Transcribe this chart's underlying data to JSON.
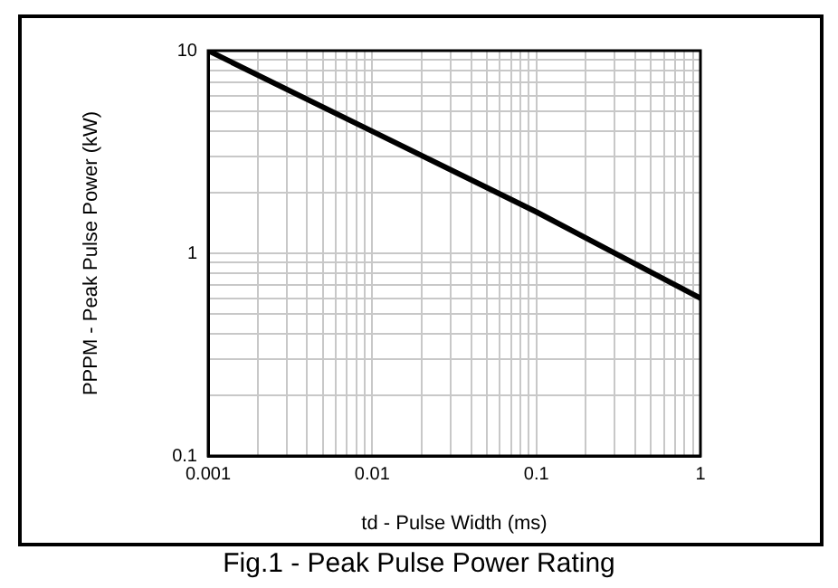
{
  "chart_data": {
    "type": "line",
    "title": "Fig.1 - Peak Pulse Power Rating",
    "xlabel": "td - Pulse Width (ms)",
    "ylabel": "PPPM - Peak Pulse Power (kW)",
    "x": [
      0.001,
      0.01,
      0.1,
      1
    ],
    "series": [
      {
        "color": "#000000",
        "values": [
          10,
          4,
          1.6,
          0.6
        ]
      }
    ],
    "log": "xy",
    "xlim": [
      0.001,
      1
    ],
    "ylim": [
      0.1,
      10
    ],
    "xticks": [
      0.001,
      {
        "value": 0.002,
        "label": null
      },
      {
        "value": 0.003,
        "label": null
      },
      {
        "value": 0.004,
        "label": null
      },
      {
        "value": 0.005,
        "label": null
      },
      {
        "value": 0.006,
        "label": null
      },
      {
        "value": 0.007,
        "label": null
      },
      {
        "value": 0.008,
        "label": null
      },
      {
        "value": 0.009,
        "label": null
      },
      0.01,
      {
        "value": 0.02,
        "label": null
      },
      {
        "value": 0.03,
        "label": null
      },
      {
        "value": 0.04,
        "label": null
      },
      {
        "value": 0.05,
        "label": null
      },
      {
        "value": 0.06,
        "label": null
      },
      {
        "value": 0.07,
        "label": null
      },
      {
        "value": 0.08,
        "label": null
      },
      {
        "value": 0.09,
        "label": null
      },
      0.1,
      {
        "value": 0.2,
        "label": null
      },
      {
        "value": 0.3,
        "label": null
      },
      {
        "value": 0.4,
        "label": null
      },
      {
        "value": 0.5,
        "label": null
      },
      {
        "value": 0.6,
        "label": null
      },
      {
        "value": 0.7,
        "label": null
      },
      {
        "value": 0.8,
        "label": null
      },
      {
        "value": 0.9,
        "label": null
      },
      1
    ],
    "yticks": [
      0.1,
      {
        "value": 0.2,
        "label": null
      },
      {
        "value": 0.3,
        "label": null
      },
      {
        "value": 0.4,
        "label": null
      },
      {
        "value": 0.5,
        "label": null
      },
      {
        "value": 0.6,
        "label": null
      },
      {
        "value": 0.7,
        "label": null
      },
      {
        "value": 0.8,
        "label": null
      },
      {
        "value": 0.9,
        "label": null
      },
      1,
      {
        "value": 2,
        "label": null
      },
      {
        "value": 3,
        "label": null
      },
      {
        "value": 4,
        "label": null
      },
      {
        "value": 5,
        "label": null
      },
      {
        "value": 6,
        "label": null
      },
      {
        "value": 7,
        "label": null
      },
      {
        "value": 8,
        "label": null
      },
      {
        "value": 9,
        "label": null
      },
      10
    ],
    "grid": true,
    "legend": false,
    "marker": "none",
    "line_style": "solid"
  }
}
